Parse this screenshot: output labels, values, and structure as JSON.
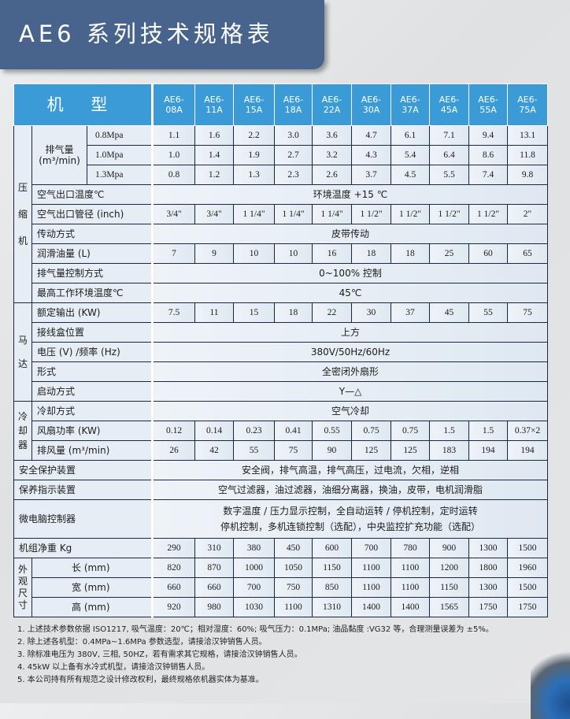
{
  "title": "AE6 系列技术规格表",
  "header": {
    "label": "机 型",
    "models": [
      "AE6-08A",
      "AE6-11A",
      "AE6-15A",
      "AE6-18A",
      "AE6-22A",
      "AE6-30A",
      "AE6-37A",
      "AE6-45A",
      "AE6-55A",
      "AE6-75A"
    ]
  },
  "compressor": {
    "group": "压缩机",
    "flow_label": "排气量",
    "flow_unit": "(m³/min)",
    "flow_rows": [
      {
        "pressure": "0.8Mpa",
        "values": [
          "1.1",
          "1.6",
          "2.2",
          "3.0",
          "3.6",
          "4.7",
          "6.1",
          "7.1",
          "9.4",
          "13.1"
        ]
      },
      {
        "pressure": "1.0Mpa",
        "values": [
          "1.0",
          "1.4",
          "1.9",
          "2.7",
          "3.2",
          "4.3",
          "5.4",
          "6.4",
          "8.6",
          "11.8"
        ]
      },
      {
        "pressure": "1.3Mpa",
        "values": [
          "0.8",
          "1.2",
          "1.3",
          "2.3",
          "2.6",
          "3.7",
          "4.5",
          "5.5",
          "7.4",
          "9.8"
        ]
      }
    ],
    "rows": [
      {
        "label": "空气出口温度℃",
        "text": "环境温度 +15 ℃"
      },
      {
        "label": "空气出口管径 (inch)",
        "values": [
          "3/4\"",
          "3/4\"",
          "1 1/4\"",
          "1 1/4\"",
          "1 1/4\"",
          "1 1/2\"",
          "1 1/2\"",
          "1 1/2\"",
          "1 1/2\"",
          "2\""
        ]
      },
      {
        "label": "传动方式",
        "text": "皮带传动"
      },
      {
        "label": "润滑油量 (L)",
        "values": [
          "7",
          "9",
          "10",
          "10",
          "16",
          "18",
          "18",
          "25",
          "60",
          "65"
        ]
      },
      {
        "label": "排气量控制方式",
        "text": "0~100% 控制"
      },
      {
        "label": "最高工作环境温度℃",
        "text": "45℃"
      }
    ]
  },
  "motor": {
    "group": "马达",
    "rows": [
      {
        "label": "额定输出 (KW)",
        "values": [
          "7.5",
          "11",
          "15",
          "18",
          "22",
          "30",
          "37",
          "45",
          "55",
          "75"
        ]
      },
      {
        "label": "接线盒位置",
        "text": "上方"
      },
      {
        "label": "电压 (V) /频率 (Hz)",
        "text": "380V/50Hz/60Hz"
      },
      {
        "label": "形式",
        "text": "全密闭外扇形"
      },
      {
        "label": "启动方式",
        "text": "Y—△"
      }
    ]
  },
  "cooler": {
    "group": "冷却器",
    "rows": [
      {
        "label": "冷却方式",
        "text": "空气冷却"
      },
      {
        "label": "风扇功率 (KW)",
        "values": [
          "0.12",
          "0.14",
          "0.23",
          "0.41",
          "0.55",
          "0.75",
          "0.75",
          "1.5",
          "1.5",
          "0.37×2"
        ]
      },
      {
        "label": "排风量 (m³/min)",
        "values": [
          "26",
          "42",
          "55",
          "75",
          "90",
          "125",
          "125",
          "183",
          "194",
          "194"
        ]
      }
    ]
  },
  "general": {
    "rows": [
      {
        "label": "安全保护装置",
        "text": "安全阀，排气高温，排气高压，过电流，欠相，逆相"
      },
      {
        "label": "保养指示装置",
        "text": "空气过滤器，油过滤器，油细分离器，换油，皮带，电机润滑脂"
      },
      {
        "label": "微电脑控制器",
        "text": "数字温度 / 压力显示控制，全自动运转 / 停机控制，定时运转",
        "text2": "停机控制，多机连锁控制（选配），中央监控扩充功能（选配）"
      },
      {
        "label": "机组净重 Kg",
        "values": [
          "290",
          "310",
          "380",
          "450",
          "600",
          "700",
          "780",
          "900",
          "1300",
          "1500"
        ]
      }
    ]
  },
  "dimensions": {
    "group": "外观尺寸",
    "rows": [
      {
        "label": "长 (mm)",
        "values": [
          "820",
          "870",
          "1000",
          "1050",
          "1150",
          "1100",
          "1100",
          "1200",
          "1800",
          "1960"
        ]
      },
      {
        "label": "宽 (mm)",
        "values": [
          "660",
          "660",
          "700",
          "750",
          "850",
          "1100",
          "1100",
          "1150",
          "1300",
          "1500"
        ]
      },
      {
        "label": "高 (mm)",
        "values": [
          "920",
          "980",
          "1030",
          "1100",
          "1310",
          "1400",
          "1400",
          "1565",
          "1750",
          "1750"
        ]
      }
    ]
  },
  "notes": [
    "1. 上述技术参数依据 ISO1217, 吸气温度：20℃；相对湿度：60%; 吸气压力：0.1MPa; 油品黏度 :VG32 等，合理测量误差为 ±5%。",
    "2. 除上述各机型：0.4MPa~1.6MPa 参数选型，请接洽汉钟销售人员。",
    "3. 除标准电压为 380V, 三相, 50HZ，若有需求其它规格，请接洽汉钟销售人员。",
    "4. 45kW 以上备有水冷式机型，请接洽汉钟销售人员。",
    "5. 本公司持有所有规范之设计修改权利，最终规格依机器实体为基准。"
  ],
  "colors": {
    "title_bar": "#48648c",
    "header": "#3a9bd7",
    "border": "#1c2740"
  }
}
